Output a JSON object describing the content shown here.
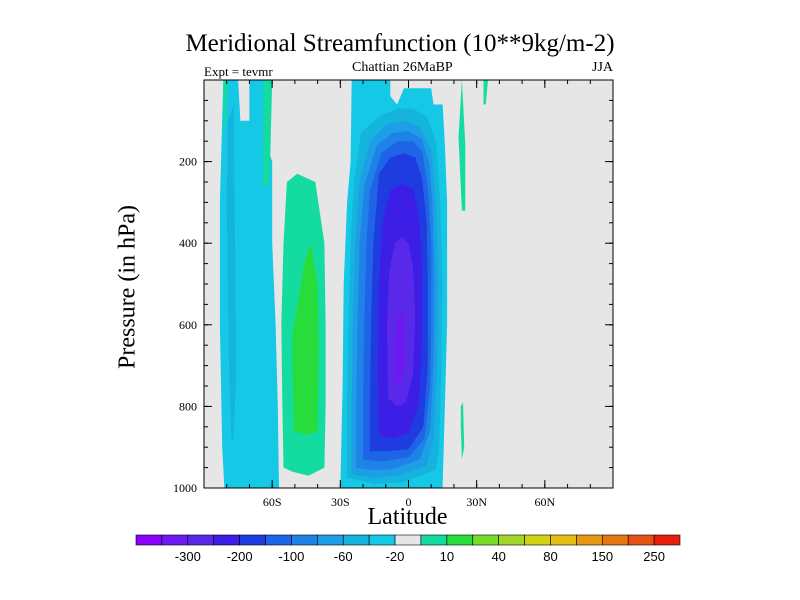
{
  "chart_data": {
    "type": "heatmap",
    "title": "Meridional Streamfunction (10**9kg/m-2)",
    "subtitle_left": "Expt = tevmr",
    "subtitle_center": "Chattian  26MaBP",
    "subtitle_right": "JJA",
    "xlabel": "Latitude",
    "ylabel": "Pressure (in hPa)",
    "xlim": [
      -90,
      90
    ],
    "ylim": [
      1000,
      0
    ],
    "x_ticks": [
      {
        "value": -60,
        "label": "60S"
      },
      {
        "value": -30,
        "label": "30S"
      },
      {
        "value": 0,
        "label": "0"
      },
      {
        "value": 30,
        "label": "30N"
      },
      {
        "value": 60,
        "label": "60N"
      }
    ],
    "y_ticks": [
      {
        "value": 200,
        "label": "200"
      },
      {
        "value": 400,
        "label": "400"
      },
      {
        "value": 600,
        "label": "600"
      },
      {
        "value": 800,
        "label": "800"
      },
      {
        "value": 1000,
        "label": "1000"
      }
    ],
    "colorbar": {
      "colors": [
        "#8c00ff",
        "#6d19f0",
        "#5a28e8",
        "#3c1ee6",
        "#1e3ce0",
        "#1e64e6",
        "#1e82e6",
        "#1e9ee6",
        "#14b4dc",
        "#14c8e6",
        "#e6e6e6",
        "#14dca0",
        "#28dc3c",
        "#78dc28",
        "#a0d728",
        "#d2d214",
        "#e6be14",
        "#e69614",
        "#e67814",
        "#e65014",
        "#e61e0a"
      ],
      "labels": [
        {
          "after_index": 1,
          "label": "-300"
        },
        {
          "after_index": 3,
          "label": "-200"
        },
        {
          "after_index": 5,
          "label": "-100"
        },
        {
          "after_index": 7,
          "label": "-60"
        },
        {
          "after_index": 9,
          "label": "-20"
        },
        {
          "after_index": 11,
          "label": "10"
        },
        {
          "after_index": 13,
          "label": "40"
        },
        {
          "after_index": 15,
          "label": "80"
        },
        {
          "after_index": 17,
          "label": "150"
        },
        {
          "after_index": 19,
          "label": "250"
        }
      ]
    },
    "contours": [
      {
        "name": "sh-cell-outer",
        "color": "#14c8e6",
        "points": [
          [
            -30,
            1000
          ],
          [
            -29,
            750
          ],
          [
            -28.5,
            500
          ],
          [
            -27,
            300
          ],
          [
            -25.5,
            200
          ],
          [
            -25,
            0
          ],
          [
            -8,
            0
          ],
          [
            -8,
            40
          ],
          [
            -5,
            60
          ],
          [
            -2,
            20
          ],
          [
            10,
            20
          ],
          [
            11,
            60
          ],
          [
            15,
            60
          ],
          [
            16,
            160
          ],
          [
            17,
            300
          ],
          [
            17,
            480
          ],
          [
            17,
            600
          ],
          [
            16.5,
            700
          ],
          [
            16,
            800
          ],
          [
            15.5,
            900
          ],
          [
            15,
            1000
          ],
          [
            -28,
            1000
          ]
        ]
      },
      {
        "name": "sh-cell-l2",
        "color": "#14b4dc",
        "points": [
          [
            -27,
            975
          ],
          [
            -27,
            800
          ],
          [
            -26.5,
            600
          ],
          [
            -25.5,
            400
          ],
          [
            -24,
            250
          ],
          [
            -21,
            130
          ],
          [
            -13,
            90
          ],
          [
            -5,
            70
          ],
          [
            2,
            70
          ],
          [
            8,
            90
          ],
          [
            12,
            150
          ],
          [
            14,
            300
          ],
          [
            15,
            500
          ],
          [
            14.5,
            700
          ],
          [
            13.5,
            900
          ],
          [
            12,
            955
          ],
          [
            -2,
            985
          ],
          [
            -15,
            990
          ]
        ]
      },
      {
        "name": "sh-cell-l3",
        "color": "#1e9ee6",
        "points": [
          [
            -25,
            965
          ],
          [
            -25,
            800
          ],
          [
            -24.5,
            600
          ],
          [
            -23.5,
            400
          ],
          [
            -21.5,
            250
          ],
          [
            -17,
            150
          ],
          [
            -10,
            110
          ],
          [
            -2,
            100
          ],
          [
            5,
            115
          ],
          [
            10,
            170
          ],
          [
            12,
            300
          ],
          [
            13,
            500
          ],
          [
            12.5,
            700
          ],
          [
            11,
            880
          ],
          [
            8,
            945
          ],
          [
            -5,
            970
          ],
          [
            -17,
            975
          ]
        ]
      },
      {
        "name": "sh-cell-l4",
        "color": "#1e82e6",
        "points": [
          [
            -23,
            950
          ],
          [
            -23,
            800
          ],
          [
            -22.5,
            600
          ],
          [
            -21.5,
            400
          ],
          [
            -19.5,
            260
          ],
          [
            -14,
            160
          ],
          [
            -7,
            130
          ],
          [
            0,
            125
          ],
          [
            6,
            145
          ],
          [
            9,
            200
          ],
          [
            10.5,
            300
          ],
          [
            11.5,
            500
          ],
          [
            11,
            700
          ],
          [
            9.5,
            860
          ],
          [
            5,
            930
          ],
          [
            -8,
            955
          ],
          [
            -18,
            955
          ]
        ]
      },
      {
        "name": "sh-cell-l5",
        "color": "#1e64e6",
        "points": [
          [
            -20,
            930
          ],
          [
            -20,
            800
          ],
          [
            -19.5,
            600
          ],
          [
            -18.5,
            400
          ],
          [
            -17,
            270
          ],
          [
            -12,
            180
          ],
          [
            -5,
            150
          ],
          [
            2,
            150
          ],
          [
            6,
            175
          ],
          [
            8.5,
            260
          ],
          [
            10,
            400
          ],
          [
            10,
            600
          ],
          [
            9.5,
            750
          ],
          [
            7,
            880
          ],
          [
            0,
            925
          ],
          [
            -12,
            935
          ]
        ]
      },
      {
        "name": "sh-cell-l6",
        "color": "#1e3ce0",
        "points": [
          [
            -17,
            910
          ],
          [
            -17,
            800
          ],
          [
            -16.5,
            600
          ],
          [
            -15.5,
            400
          ],
          [
            -13,
            230
          ],
          [
            -8,
            190
          ],
          [
            -2,
            180
          ],
          [
            3,
            190
          ],
          [
            6,
            240
          ],
          [
            8,
            350
          ],
          [
            8.5,
            500
          ],
          [
            8.5,
            700
          ],
          [
            6.5,
            850
          ],
          [
            0,
            905
          ],
          [
            -10,
            910
          ]
        ]
      },
      {
        "name": "sh-cell-l7",
        "color": "#3c1ee6",
        "points": [
          [
            -13,
            870
          ],
          [
            -13.5,
            700
          ],
          [
            -13,
            500
          ],
          [
            -11.5,
            350
          ],
          [
            -8,
            270
          ],
          [
            -3,
            255
          ],
          [
            2,
            265
          ],
          [
            4.5,
            330
          ],
          [
            6,
            450
          ],
          [
            6,
            650
          ],
          [
            4.5,
            800
          ],
          [
            0,
            865
          ],
          [
            -7,
            880
          ]
        ]
      },
      {
        "name": "sh-cell-l8",
        "color": "#5a28e8",
        "points": [
          [
            -9,
            780
          ],
          [
            -9.5,
            600
          ],
          [
            -8.5,
            470
          ],
          [
            -6,
            400
          ],
          [
            -3,
            385
          ],
          [
            0,
            400
          ],
          [
            2,
            460
          ],
          [
            3,
            580
          ],
          [
            2,
            720
          ],
          [
            -1,
            790
          ],
          [
            -5,
            800
          ]
        ]
      },
      {
        "name": "sh-cell-core",
        "color": "#6d19f0",
        "points": [
          [
            -6,
            740
          ],
          [
            -6,
            640
          ],
          [
            -5,
            580
          ],
          [
            -3,
            570
          ],
          [
            -2,
            600
          ],
          [
            -1.5,
            680
          ],
          [
            -3,
            740
          ]
        ]
      },
      {
        "name": "sh-west-strip",
        "color": "#14c8e6",
        "points": [
          [
            -81,
            1000
          ],
          [
            -82,
            900
          ],
          [
            -83,
            600
          ],
          [
            -83,
            300
          ],
          [
            -81.5,
            0
          ],
          [
            -75,
            0
          ],
          [
            -74,
            100
          ],
          [
            -70,
            100
          ],
          [
            -70,
            0
          ],
          [
            -63,
            0
          ],
          [
            -63,
            150
          ],
          [
            -60,
            200
          ],
          [
            -60,
            400
          ],
          [
            -58.5,
            600
          ],
          [
            -57.5,
            800
          ],
          [
            -57,
            1000
          ],
          [
            -82,
            1000
          ]
        ]
      },
      {
        "name": "sh-west-inner",
        "color": "#14b4dc",
        "points": [
          [
            -78,
            880
          ],
          [
            -79,
            700
          ],
          [
            -80,
            300
          ],
          [
            -79.5,
            100
          ],
          [
            -77,
            60
          ],
          [
            -76.5,
            300
          ],
          [
            -76,
            600
          ],
          [
            -76,
            750
          ],
          [
            -77,
            880
          ]
        ]
      },
      {
        "name": "sh-west-green-1",
        "color": "#14dca0",
        "points": [
          [
            -81.5,
            0
          ],
          [
            -81.5,
            150
          ],
          [
            -80.5,
            100
          ],
          [
            -79.5,
            0
          ]
        ]
      },
      {
        "name": "sh-west-green-2",
        "color": "#14dca0",
        "points": [
          [
            -64,
            0
          ],
          [
            -64,
            260
          ],
          [
            -62,
            260
          ],
          [
            -61,
            220
          ],
          [
            -60,
            0
          ]
        ]
      },
      {
        "name": "green-belt",
        "color": "#14dca0",
        "points": [
          [
            -55,
            950
          ],
          [
            -55.5,
            800
          ],
          [
            -56,
            600
          ],
          [
            -55,
            400
          ],
          [
            -53.5,
            250
          ],
          [
            -49,
            230
          ],
          [
            -41,
            250
          ],
          [
            -37,
            400
          ],
          [
            -36.5,
            600
          ],
          [
            -36.5,
            800
          ],
          [
            -37,
            950
          ],
          [
            -44,
            970
          ],
          [
            -51,
            960
          ]
        ]
      },
      {
        "name": "green-belt-inner",
        "color": "#28dc3c",
        "points": [
          [
            -50.5,
            860
          ],
          [
            -51,
            700
          ],
          [
            -51,
            620
          ],
          [
            -48.5,
            540
          ],
          [
            -46,
            450
          ],
          [
            -43,
            400
          ],
          [
            -40,
            500
          ],
          [
            -39.5,
            650
          ],
          [
            -40,
            860
          ],
          [
            -45,
            870
          ]
        ]
      },
      {
        "name": "nh-green-sliver",
        "color": "#14dca0",
        "points": [
          [
            23.5,
            320
          ],
          [
            22,
            140
          ],
          [
            23.5,
            0
          ],
          [
            25,
            160
          ],
          [
            25,
            320
          ]
        ]
      },
      {
        "name": "nh-green-sliver-2",
        "color": "#14dca0",
        "points": [
          [
            23.5,
            930
          ],
          [
            23,
            850
          ],
          [
            23,
            800
          ],
          [
            24,
            790
          ],
          [
            24.5,
            900
          ]
        ]
      },
      {
        "name": "nh-top-blip",
        "color": "#14dca0",
        "points": [
          [
            33,
            0
          ],
          [
            33,
            60
          ],
          [
            34,
            60
          ],
          [
            35,
            0
          ]
        ]
      }
    ]
  }
}
